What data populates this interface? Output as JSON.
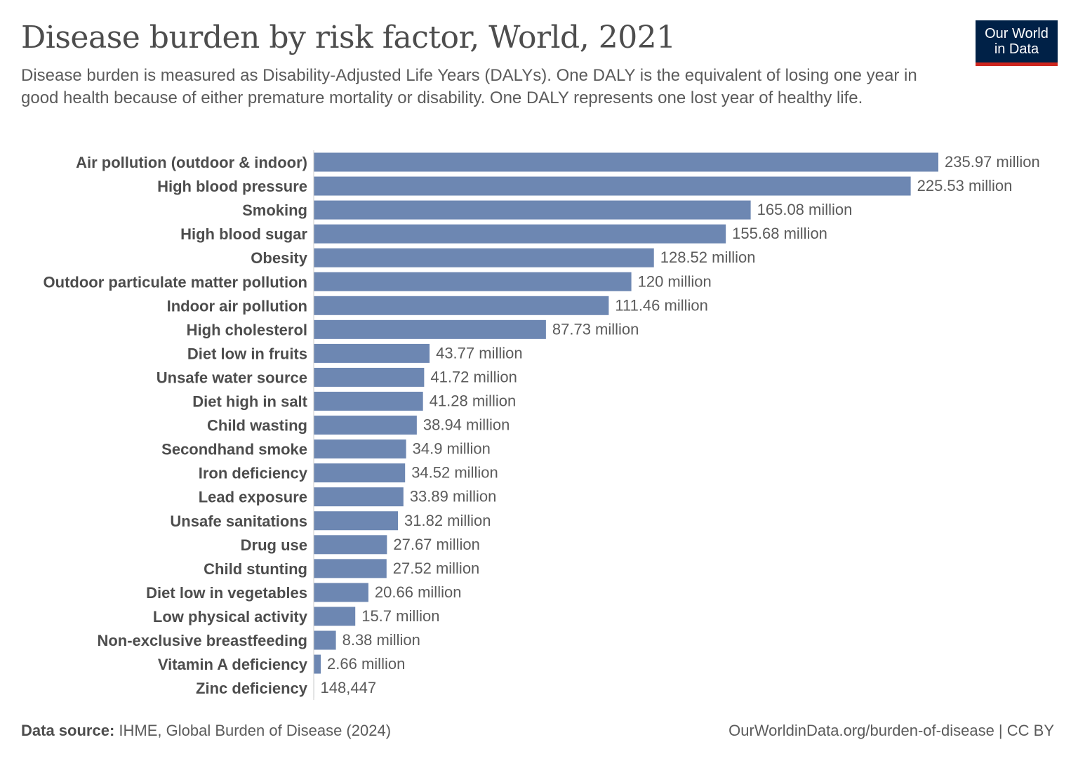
{
  "header": {
    "title": "Disease burden by risk factor, World, 2021",
    "subtitle": "Disease burden is measured as Disability-Adjusted Life Years (DALYs). One DALY is the equivalent of losing one year in good health because of either premature mortality or disability. One DALY represents one lost year of healthy life.",
    "logo_line1": "Our World",
    "logo_line2": "in Data"
  },
  "footer": {
    "source_label": "Data source:",
    "source_text": " IHME, Global Burden of Disease (2024)",
    "url": "OurWorldinData.org/burden-of-disease | CC BY"
  },
  "colors": {
    "bar": "#6d87b2",
    "logo_bg": "#002147",
    "logo_accent": "#ce261e"
  },
  "chart_data": {
    "type": "bar",
    "orientation": "horizontal",
    "unit": "DALYs (millions)",
    "categories": [
      "Air pollution (outdoor & indoor)",
      "High blood pressure",
      "Smoking",
      "High blood sugar",
      "Obesity",
      "Outdoor particulate matter pollution",
      "Indoor air pollution",
      "High cholesterol",
      "Diet low in fruits",
      "Unsafe water source",
      "Diet high in salt",
      "Child wasting",
      "Secondhand smoke",
      "Iron deficiency",
      "Lead exposure",
      "Unsafe sanitations",
      "Drug use",
      "Child stunting",
      "Diet low in vegetables",
      "Low physical activity",
      "Non-exclusive breastfeeding",
      "Vitamin A deficiency",
      "Zinc deficiency"
    ],
    "values": [
      235.97,
      225.53,
      165.08,
      155.68,
      128.52,
      120,
      111.46,
      87.73,
      43.77,
      41.72,
      41.28,
      38.94,
      34.9,
      34.52,
      33.89,
      31.82,
      27.67,
      27.52,
      20.66,
      15.7,
      8.38,
      2.66,
      0.148447
    ],
    "labels": [
      "235.97 million",
      "225.53 million",
      "165.08 million",
      "155.68 million",
      "128.52 million",
      "120 million",
      "111.46 million",
      "87.73 million",
      "43.77 million",
      "41.72 million",
      "41.28 million",
      "38.94 million",
      "34.9 million",
      "34.52 million",
      "33.89 million",
      "31.82 million",
      "27.67 million",
      "27.52 million",
      "20.66 million",
      "15.7 million",
      "8.38 million",
      "2.66 million",
      "148,447"
    ]
  }
}
